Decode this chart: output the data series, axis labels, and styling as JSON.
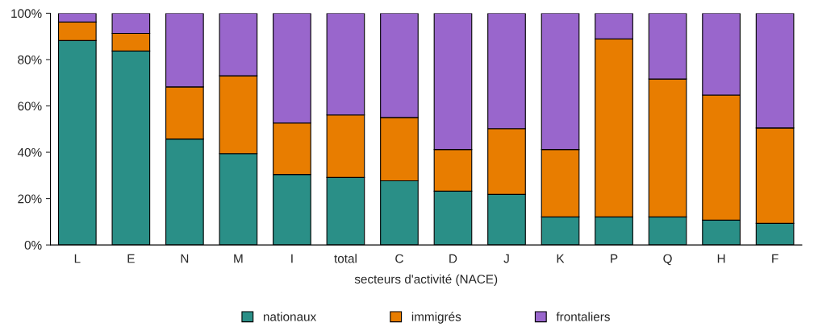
{
  "chart_data": {
    "type": "bar",
    "stacked": true,
    "xlabel": "secteurs d'activité (NACE)",
    "categories": [
      "L",
      "E",
      "N",
      "M",
      "I",
      "total",
      "C",
      "D",
      "J",
      "K",
      "P",
      "Q",
      "H",
      "F"
    ],
    "series": [
      {
        "name": "nationaux",
        "color": "#2a8f87",
        "values": [
          88.2,
          83.7,
          45.7,
          39.4,
          30.4,
          29.1,
          27.7,
          23.2,
          21.8,
          12.1,
          12.1,
          12.1,
          10.7,
          9.3
        ]
      },
      {
        "name": "immigrés",
        "color": "#e87d00",
        "values": [
          8.0,
          7.6,
          22.5,
          33.6,
          22.2,
          27.0,
          27.3,
          18.0,
          28.4,
          29.1,
          76.8,
          59.5,
          54.0,
          41.2
        ]
      },
      {
        "name": "frontaliers",
        "color": "#9966cc",
        "values": [
          3.8,
          8.7,
          31.8,
          27.0,
          47.4,
          43.9,
          45.0,
          58.8,
          49.8,
          58.8,
          11.1,
          28.4,
          35.3,
          49.5
        ]
      }
    ],
    "ylim": [
      0,
      100
    ],
    "yticks": [
      {
        "value": 0,
        "label": "0%"
      },
      {
        "value": 20,
        "label": "20%"
      },
      {
        "value": 40,
        "label": "40%"
      },
      {
        "value": 60,
        "label": "60%"
      },
      {
        "value": 80,
        "label": "80%"
      },
      {
        "value": 100,
        "label": "100%"
      }
    ],
    "grid": false,
    "legend": "bottom"
  }
}
